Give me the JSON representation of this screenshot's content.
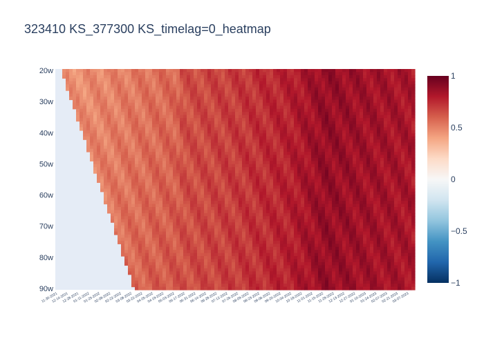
{
  "chart_data": {
    "type": "heatmap",
    "title": "323410 KS_377300 KS_timelag=0_heatmap",
    "y_categories": [
      "20w",
      "30w",
      "40w",
      "50w",
      "60w",
      "70w",
      "80w",
      "90w"
    ],
    "x_tick_labels": [
      "11-30-2021",
      "12-14-2021",
      "12-28-2021",
      "01-11-2022",
      "01-25-2022",
      "02-08-2022",
      "02-22-2022",
      "03-08-2022",
      "03-22-2022",
      "04-05-2022",
      "04-19-2022",
      "05-03-2022",
      "05-17-2022",
      "05-31-2022",
      "06-14-2022",
      "06-28-2022",
      "07-12-2022",
      "07-26-2022",
      "08-09-2022",
      "08-23-2022",
      "09-06-2022",
      "09-20-2022",
      "10-04-2022",
      "10-18-2022",
      "11-01-2022",
      "11-15-2022",
      "11-29-2022",
      "12-13-2022",
      "12-27-2022",
      "01-10-2023",
      "01-24-2023",
      "02-07-2023",
      "02-21-2023",
      "03-07-2023"
    ],
    "colorscale": {
      "name": "RdBu_r",
      "min": -1,
      "max": 1,
      "ticks": [
        "1",
        "0.5",
        "0",
        "−0.5",
        "−1"
      ],
      "tick_values": [
        1,
        0.5,
        0,
        -0.5,
        -1
      ],
      "colors": [
        "#053061",
        "#2166ac",
        "#4393c3",
        "#92c5de",
        "#d1e5f0",
        "#f7f7f7",
        "#fddbc7",
        "#f4a582",
        "#d6604d",
        "#b2182b",
        "#67001f"
      ]
    },
    "plot_background": "#e5ecf6",
    "value_profile": {
      "x_norm": [
        0,
        0.15,
        0.3,
        0.5,
        0.65,
        0.75,
        0.85,
        1
      ],
      "values": [
        0.5,
        0.55,
        0.62,
        0.7,
        0.78,
        0.88,
        0.85,
        0.82
      ]
    }
  }
}
